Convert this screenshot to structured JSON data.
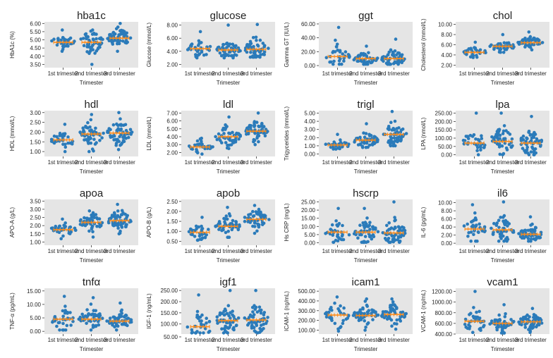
{
  "chart_data": {
    "type": "scatter",
    "categories": [
      "1st trimester",
      "2nd trimester",
      "3rd trimester"
    ],
    "xlabel": "Trimester",
    "colors": {
      "points": "#2b7bba",
      "mean": "#ff8c1a",
      "panel_bg": "#e5e5e5"
    },
    "panels": [
      {
        "id": "hba1c",
        "title": "hba1c",
        "ylabel": "HbA1c (%)",
        "ylim": [
          3.3,
          6.1
        ],
        "yticks": [
          3.5,
          4.0,
          4.5,
          5.0,
          5.5,
          6.0
        ],
        "tick_labels": [
          "3.50",
          "4.00",
          "4.50",
          "5.00",
          "5.50",
          "6.00"
        ],
        "means": [
          4.85,
          4.85,
          5.1
        ],
        "ranges": [
          [
            4.3,
            5.6
          ],
          [
            3.5,
            5.6
          ],
          [
            4.3,
            6.0
          ]
        ],
        "counts": [
          34,
          52,
          58
        ]
      },
      {
        "id": "glucose",
        "title": "glucose",
        "ylabel": "Glucose (mmol/L)",
        "ylim": [
          1.5,
          8.5
        ],
        "yticks": [
          2,
          4,
          6,
          8
        ],
        "tick_labels": [
          "2.00",
          "4.00",
          "6.00",
          "8.00"
        ],
        "means": [
          4.4,
          4.2,
          4.3
        ],
        "ranges": [
          [
            3.0,
            7.0
          ],
          [
            3.0,
            8.0
          ],
          [
            3.1,
            8.1
          ]
        ],
        "counts": [
          34,
          52,
          58
        ]
      },
      {
        "id": "ggt",
        "title": "ggt",
        "ylabel": "Gamma GT (IU/L)",
        "ylim": [
          -3,
          63
        ],
        "yticks": [
          0,
          20,
          40,
          60
        ],
        "tick_labels": [
          "0.00",
          "20.00",
          "40.00",
          "60.00"
        ],
        "means": [
          13,
          10,
          10
        ],
        "ranges": [
          [
            2,
            55
          ],
          [
            2,
            28
          ],
          [
            2,
            38
          ]
        ],
        "counts": [
          34,
          52,
          58
        ]
      },
      {
        "id": "chol",
        "title": "chol",
        "ylabel": "Cholesterol (mmol/L)",
        "ylim": [
          1.5,
          10.5
        ],
        "yticks": [
          2,
          4,
          6,
          8,
          10
        ],
        "tick_labels": [
          "2.00",
          "4.00",
          "6.00",
          "8.00",
          "10.00"
        ],
        "means": [
          4.5,
          5.7,
          6.4
        ],
        "ranges": [
          [
            3.5,
            6.5
          ],
          [
            4.5,
            8.0
          ],
          [
            5.0,
            8.5
          ]
        ],
        "counts": [
          34,
          52,
          58
        ]
      },
      {
        "id": "hdl",
        "title": "hdl",
        "ylabel": "HDL (mmol/L)",
        "ylim": [
          0.75,
          3.1
        ],
        "yticks": [
          1.0,
          1.5,
          2.0,
          2.5,
          3.0
        ],
        "tick_labels": [
          "1.00",
          "1.50",
          "2.00",
          "2.50",
          "3.00"
        ],
        "means": [
          1.6,
          1.9,
          1.95
        ],
        "ranges": [
          [
            1.0,
            2.4
          ],
          [
            1.0,
            2.9
          ],
          [
            1.1,
            3.0
          ]
        ],
        "counts": [
          34,
          52,
          58
        ]
      },
      {
        "id": "ldl",
        "title": "ldl",
        "ylabel": "LDL (mmol/L)",
        "ylim": [
          1.5,
          7.3
        ],
        "yticks": [
          2,
          3,
          4,
          5,
          6,
          7
        ],
        "tick_labels": [
          "2.00",
          "3.00",
          "4.00",
          "5.00",
          "6.00",
          "7.00"
        ],
        "means": [
          2.7,
          4.0,
          4.7
        ],
        "ranges": [
          [
            1.8,
            3.8
          ],
          [
            2.5,
            6.5
          ],
          [
            3.0,
            7.0
          ]
        ],
        "counts": [
          34,
          52,
          58
        ]
      },
      {
        "id": "trigl",
        "title": "trigl",
        "ylabel": "Trigycerides (mmol/L)",
        "ylim": [
          -0.3,
          5.3
        ],
        "yticks": [
          0,
          1,
          2,
          3,
          4,
          5
        ],
        "tick_labels": [
          "0.00",
          "1.00",
          "2.00",
          "3.00",
          "4.00",
          "5.00"
        ],
        "means": [
          1.1,
          1.7,
          2.4
        ],
        "ranges": [
          [
            0.6,
            2.4
          ],
          [
            0.8,
            3.7
          ],
          [
            1.0,
            5.2
          ]
        ],
        "counts": [
          34,
          52,
          58
        ]
      },
      {
        "id": "lpa",
        "title": "lpa",
        "ylabel": "LPA (nmol/L)",
        "ylim": [
          -10,
          265
        ],
        "yticks": [
          0,
          50,
          100,
          150,
          200,
          250
        ],
        "tick_labels": [
          "0.00",
          "50.00",
          "100.00",
          "150.00",
          "200.00",
          "250.00"
        ],
        "means": [
          70,
          80,
          70
        ],
        "ranges": [
          [
            0,
            250
          ],
          [
            0,
            250
          ],
          [
            0,
            230
          ]
        ],
        "counts": [
          34,
          52,
          58
        ]
      },
      {
        "id": "apoa",
        "title": "apoa",
        "ylabel": "APO-A (g/L)",
        "ylim": [
          0.8,
          3.6
        ],
        "yticks": [
          1.0,
          1.5,
          2.0,
          2.5,
          3.0,
          3.5
        ],
        "tick_labels": [
          "1.00",
          "1.50",
          "2.00",
          "2.50",
          "3.00",
          "3.50"
        ],
        "means": [
          1.75,
          2.2,
          2.3
        ],
        "ranges": [
          [
            1.2,
            2.4
          ],
          [
            1.3,
            2.9
          ],
          [
            1.5,
            3.3
          ]
        ],
        "counts": [
          34,
          52,
          58
        ]
      },
      {
        "id": "apob",
        "title": "apob",
        "ylabel": "APO-B (g/L)",
        "ylim": [
          0.3,
          2.6
        ],
        "yticks": [
          0.5,
          1.0,
          1.5,
          2.0,
          2.5
        ],
        "tick_labels": [
          "0.50",
          "1.00",
          "1.50",
          "2.00",
          "2.50"
        ],
        "means": [
          0.95,
          1.25,
          1.6
        ],
        "ranges": [
          [
            0.55,
            1.7
          ],
          [
            0.7,
            2.2
          ],
          [
            0.9,
            2.3
          ]
        ],
        "counts": [
          34,
          52,
          58
        ]
      },
      {
        "id": "hscrp",
        "title": "hscrp",
        "ylabel": "Hs CRP (mg/L)",
        "ylim": [
          -1.5,
          26.5
        ],
        "yticks": [
          0,
          5,
          10,
          15,
          20,
          25
        ],
        "tick_labels": [
          "0.00",
          "5.00",
          "10.00",
          "15.00",
          "20.00",
          "25.00"
        ],
        "means": [
          6.5,
          6.5,
          6.0
        ],
        "ranges": [
          [
            0.3,
            21
          ],
          [
            0.3,
            21
          ],
          [
            0.3,
            25
          ]
        ],
        "counts": [
          34,
          52,
          58
        ]
      },
      {
        "id": "il6",
        "title": "il6",
        "ylabel": "IL-6 (pg/mL)",
        "ylim": [
          -0.5,
          10.8
        ],
        "yticks": [
          0,
          2,
          4,
          6,
          8,
          10
        ],
        "tick_labels": [
          "0.00",
          "2.00",
          "4.00",
          "6.00",
          "8.00",
          "10.00"
        ],
        "means": [
          3.5,
          3.3,
          2.2
        ],
        "ranges": [
          [
            0.5,
            9.5
          ],
          [
            0.5,
            10.2
          ],
          [
            0.5,
            6.5
          ]
        ],
        "counts": [
          34,
          52,
          58
        ]
      },
      {
        "id": "tnfa",
        "title": "tnfα",
        "ylabel": "TNF-α (pg/mL)",
        "ylim": [
          -1,
          16
        ],
        "yticks": [
          0,
          5,
          10,
          15
        ],
        "tick_labels": [
          "0.00",
          "5.00",
          "10.00",
          "15.00"
        ],
        "means": [
          4.5,
          4.5,
          3.8
        ],
        "ranges": [
          [
            0.5,
            13
          ],
          [
            0.5,
            12.5
          ],
          [
            0.5,
            10.5
          ]
        ],
        "counts": [
          34,
          52,
          58
        ]
      },
      {
        "id": "igf1",
        "title": "igf1",
        "ylabel": "IGF-1 (ng/mL)",
        "ylim": [
          55,
          260
        ],
        "yticks": [
          100,
          150,
          200,
          250
        ],
        "tick_labels": [
          "100.00",
          "150.00",
          "200.00",
          "250.00"
        ],
        "means": [
          88,
          115,
          118
        ],
        "ranges": [
          [
            60,
            230
          ],
          [
            60,
            250
          ],
          [
            60,
            250
          ]
        ],
        "counts": [
          34,
          52,
          58
        ],
        "extra_tick": {
          "value": 50,
          "label": "50.00"
        }
      },
      {
        "id": "icam1",
        "title": "icam1",
        "ylabel": "ICAM-1 (ng/mL)",
        "ylim": [
          60,
          530
        ],
        "yticks": [
          100,
          200,
          300,
          400,
          500
        ],
        "tick_labels": [
          "100.00",
          "200.00",
          "300.00",
          "400.00",
          "500.00"
        ],
        "means": [
          255,
          250,
          260
        ],
        "ranges": [
          [
            90,
            440
          ],
          [
            100,
            420
          ],
          [
            110,
            420
          ]
        ],
        "counts": [
          34,
          52,
          58
        ]
      },
      {
        "id": "vcam1",
        "title": "vcam1",
        "ylabel": "VCAM-1 (ng/mL)",
        "ylim": [
          400,
          1260
        ],
        "yticks": [
          400,
          600,
          800,
          1000,
          1200
        ],
        "tick_labels": [
          "400.00",
          "600.00",
          "800.00",
          "1000.00",
          "1200.00"
        ],
        "means": [
          640,
          600,
          630
        ],
        "ranges": [
          [
            430,
            1200
          ],
          [
            420,
            950
          ],
          [
            430,
            880
          ]
        ],
        "counts": [
          34,
          52,
          58
        ]
      }
    ]
  }
}
